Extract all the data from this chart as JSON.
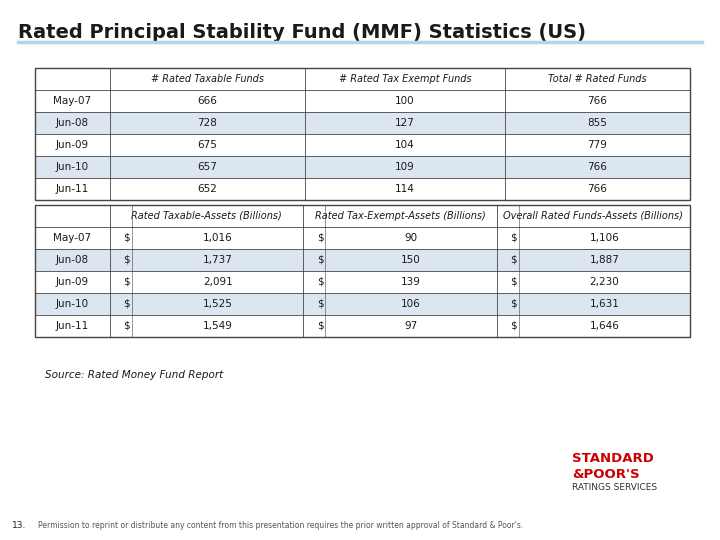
{
  "title": "Rated Principal Stability Fund (MMF) Statistics (US)",
  "title_fontsize": 14,
  "title_fontweight": "bold",
  "background_color": "#ffffff",
  "table1_header": [
    "",
    "# Rated Taxable Funds",
    "# Rated Tax Exempt Funds",
    "Total # Rated Funds"
  ],
  "table1_rows": [
    [
      "May-07",
      "666",
      "100",
      "766"
    ],
    [
      "Jun-08",
      "728",
      "127",
      "855"
    ],
    [
      "Jun-09",
      "675",
      "104",
      "779"
    ],
    [
      "Jun-10",
      "657",
      "109",
      "766"
    ],
    [
      "Jun-11",
      "652",
      "114",
      "766"
    ]
  ],
  "table2_col_headers": [
    "",
    "Rated Taxable-Assets (Billions)",
    "Rated Tax-Exempt-Assets (Billions)",
    "Overall Rated Funds-Assets (Billions)"
  ],
  "table2_rows": [
    [
      "May-07",
      "$",
      "1,016",
      "$",
      "90",
      "$",
      "1,106"
    ],
    [
      "Jun-08",
      "$",
      "1,737",
      "$",
      "150",
      "$",
      "1,887"
    ],
    [
      "Jun-09",
      "$",
      "2,091",
      "$",
      "139",
      "$",
      "2,230"
    ],
    [
      "Jun-10",
      "$",
      "1,525",
      "$",
      "106",
      "$",
      "1,631"
    ],
    [
      "Jun-11",
      "$",
      "1,549",
      "$",
      "97",
      "$",
      "1,646"
    ]
  ],
  "source_text": "Source: Rated Money Fund Report",
  "footer_text": "Permission to reprint or distribute any content from this presentation requires the prior written approval of Standard & Poor's.",
  "page_number": "13.",
  "sp_logo_color": "#cc0000",
  "header_line_color": "#add8e6",
  "table_border_color": "#444444",
  "alt_row_color": "#dce6f1",
  "normal_row_color": "#ffffff",
  "header_row_color": "#ffffff",
  "table_font": "DejaVu Sans",
  "data_fontsize": 7.5,
  "header_fontsize": 7.0
}
